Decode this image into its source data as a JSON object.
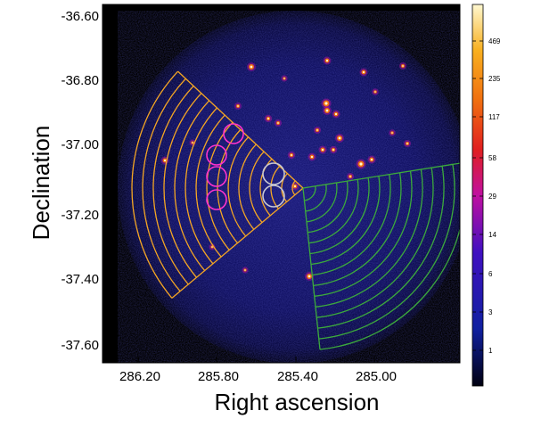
{
  "image": {
    "type": "astronomical count map (false color)",
    "background_color": "#000000",
    "diffuse_color": "#14146e"
  },
  "axes": {
    "xlabel": "Right ascension",
    "ylabel": "Declination",
    "xticks": [
      "286.20",
      "285.80",
      "285.40",
      "285.00"
    ],
    "yticks": [
      "-36.60",
      "-36.80",
      "-37.00",
      "-37.20",
      "-37.40",
      "-37.60"
    ]
  },
  "colorbar": {
    "labels": [
      "469",
      "235",
      "117",
      "58",
      "29",
      "14",
      "6",
      "3",
      "1"
    ],
    "colors": [
      "#000010",
      "#1020a0",
      "#4010c0",
      "#c010a0",
      "#e02020",
      "#f07010",
      "#f8b020",
      "#fff8d0"
    ]
  },
  "regions": {
    "orange_sector_color": "#f5a623",
    "green_sector_color": "#3caa3c",
    "magenta_circles_color": "#ff33cc",
    "grey_circles_color": "#c8c8d2"
  }
}
